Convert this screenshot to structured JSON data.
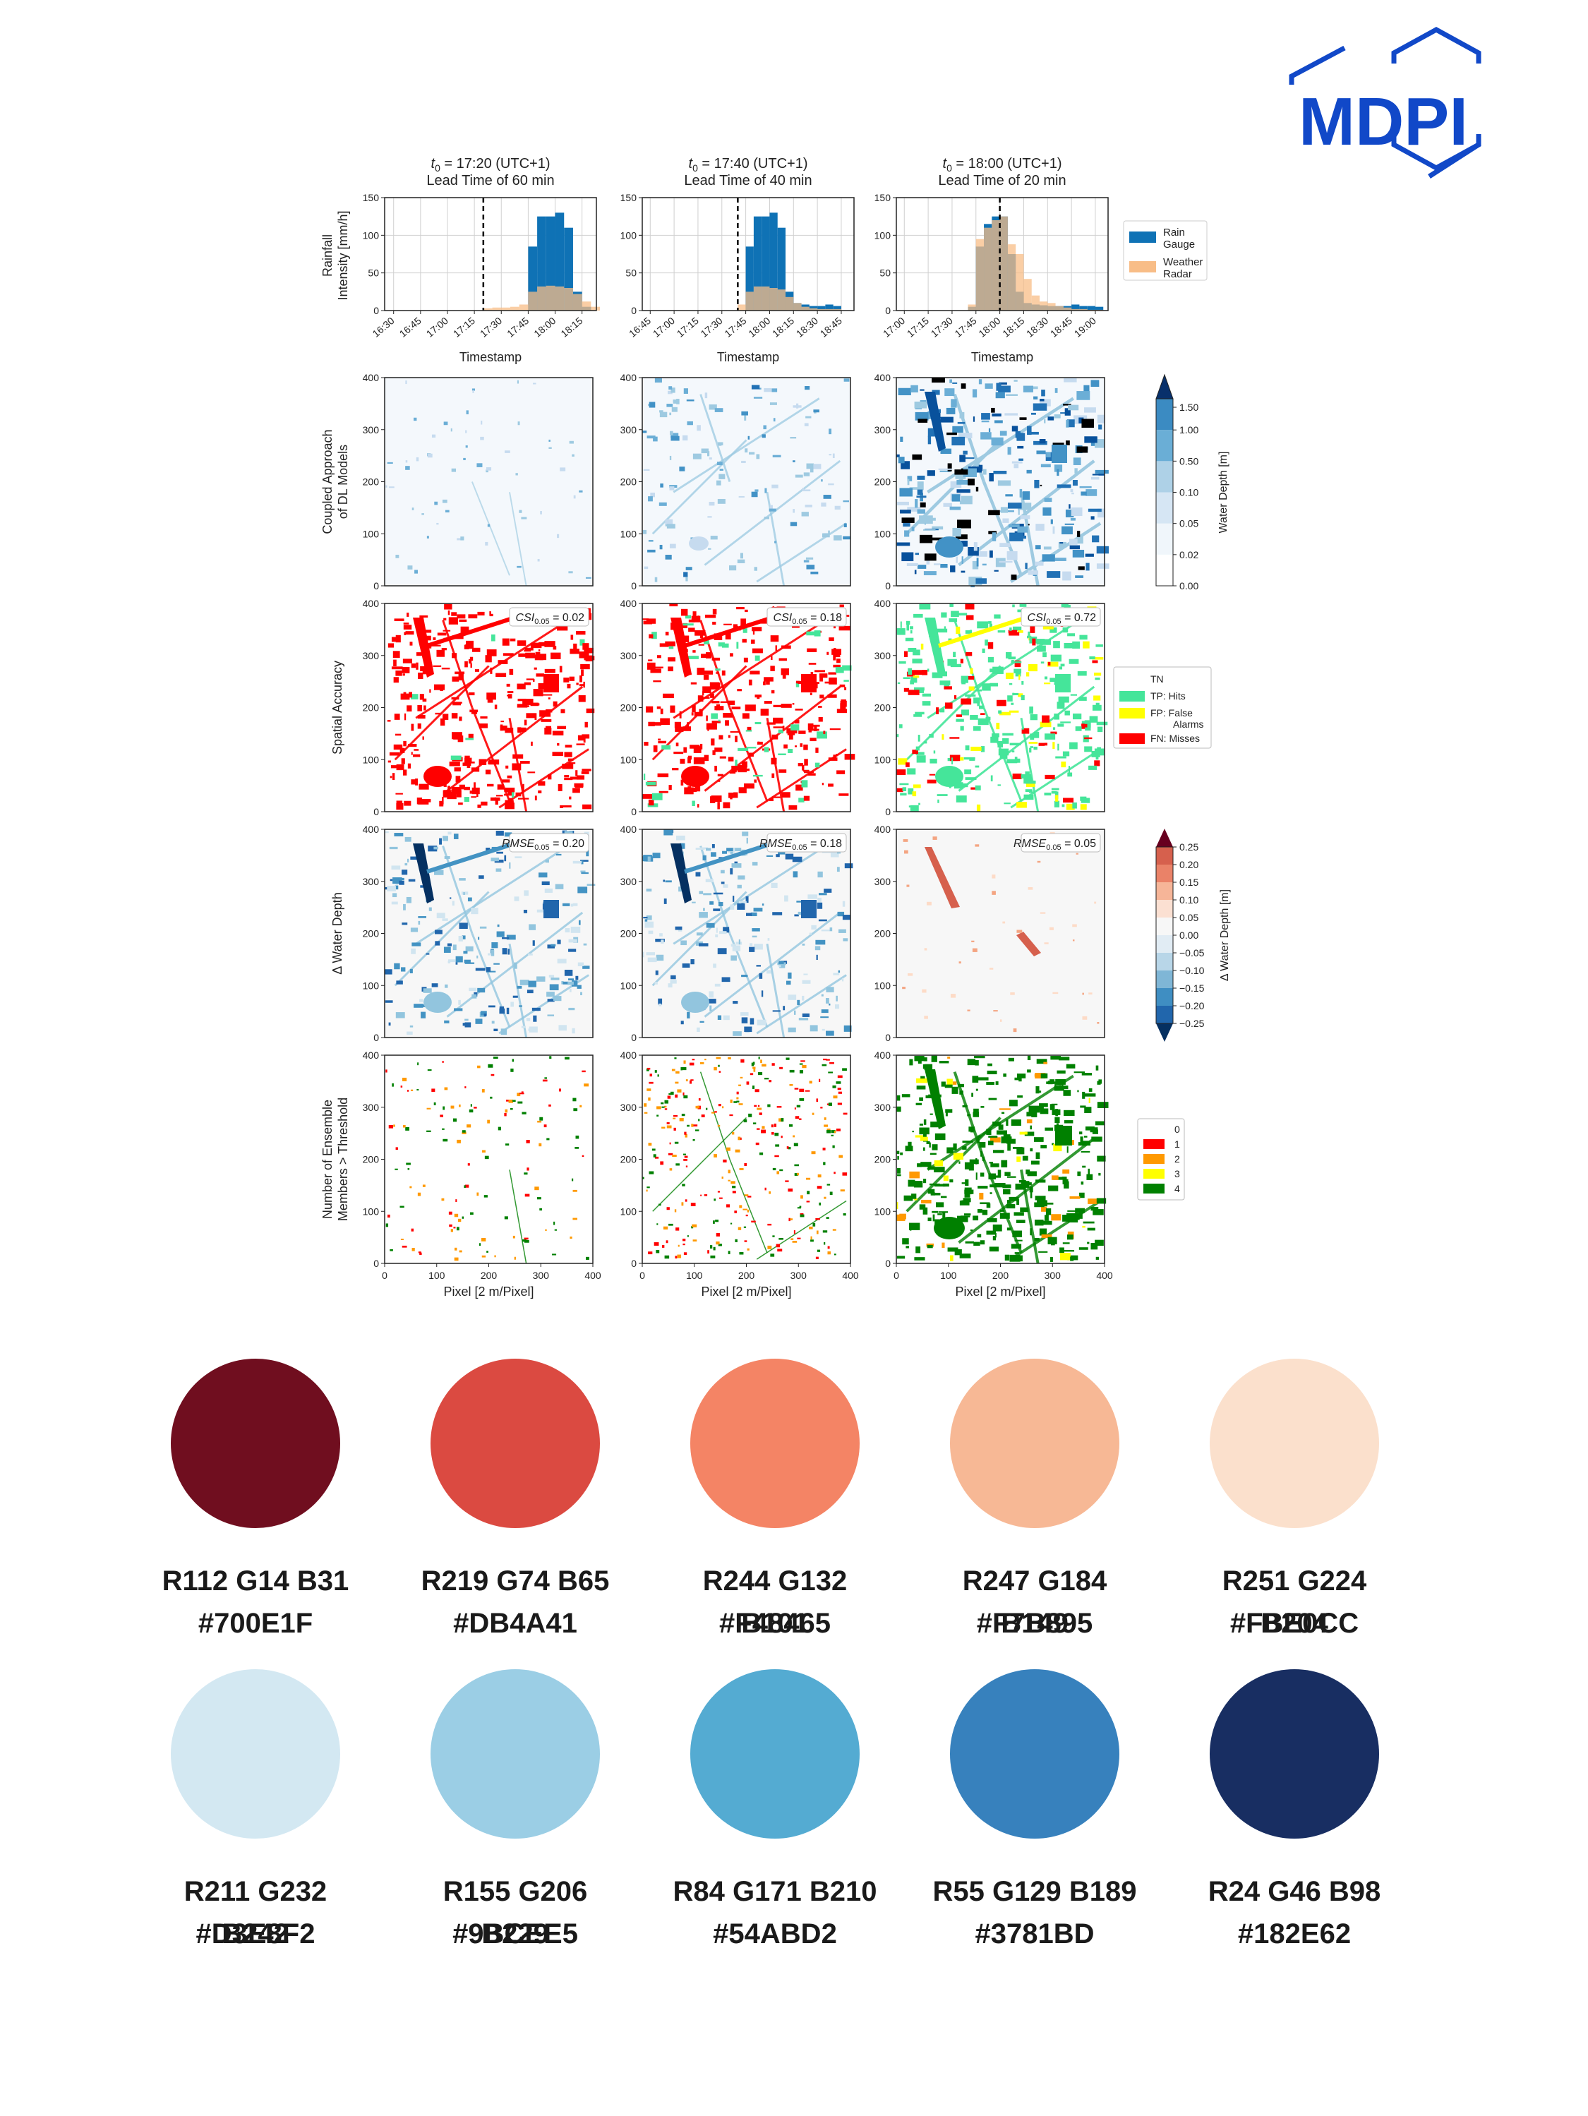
{
  "publisher": {
    "name": "MDPI",
    "color": "#1148c8"
  },
  "columns": [
    {
      "title_var": "t",
      "title_sub": "0",
      "title_rest": " = 17:20 (UTC+1)",
      "subtitle": "Lead Time of 60 min",
      "ticks": [
        "16:30",
        "16:45",
        "17:00",
        "17:15",
        "17:30",
        "17:45",
        "18:00",
        "18:15"
      ]
    },
    {
      "title_var": "t",
      "title_sub": "0",
      "title_rest": " = 17:40 (UTC+1)",
      "subtitle": "Lead Time of 40 min",
      "ticks": [
        "16:45",
        "17:00",
        "17:15",
        "17:30",
        "17:45",
        "18:00",
        "18:15",
        "18:30",
        "18:45"
      ]
    },
    {
      "title_var": "t",
      "title_sub": "0",
      "title_rest": " = 18:00 (UTC+1)",
      "subtitle": "Lead Time of 20 min",
      "ticks": [
        "17:00",
        "17:15",
        "17:30",
        "17:45",
        "18:00",
        "18:15",
        "18:30",
        "18:45",
        "19:00"
      ]
    }
  ],
  "chart_data": [
    {
      "type": "bar",
      "title": "t0 = 17:20 (UTC+1) Lead Time of 60 min",
      "xlabel": "Timestamp",
      "ylabel": "Rainfall Intensity [mm/h]",
      "ylim": [
        0,
        150
      ],
      "grid": true,
      "t0": "17:20",
      "categories": [
        "17:20",
        "17:25",
        "17:30",
        "17:35",
        "17:40",
        "17:45",
        "17:50",
        "17:55",
        "18:00",
        "18:05",
        "18:10",
        "18:15",
        "18:20"
      ],
      "series": [
        {
          "name": "Rain Gauge",
          "values": [
            0,
            0,
            0,
            0,
            0,
            85,
            125,
            125,
            130,
            110,
            25,
            5,
            0
          ]
        },
        {
          "name": "Weather Radar",
          "values": [
            3,
            4,
            4,
            5,
            8,
            25,
            32,
            33,
            32,
            30,
            22,
            12,
            5
          ]
        }
      ]
    },
    {
      "type": "bar",
      "title": "t0 = 17:40 (UTC+1) Lead Time of 40 min",
      "xlabel": "Timestamp",
      "ylabel": "Rainfall Intensity [mm/h]",
      "ylim": [
        0,
        150
      ],
      "grid": true,
      "t0": "17:40",
      "categories": [
        "17:40",
        "17:45",
        "17:50",
        "17:55",
        "18:00",
        "18:05",
        "18:10",
        "18:15",
        "18:20",
        "18:25",
        "18:30",
        "18:35",
        "18:40",
        "18:45"
      ],
      "series": [
        {
          "name": "Rain Gauge",
          "values": [
            0,
            85,
            125,
            125,
            130,
            110,
            25,
            10,
            8,
            6,
            6,
            8,
            6,
            0
          ]
        },
        {
          "name": "Weather Radar",
          "values": [
            8,
            25,
            32,
            32,
            30,
            28,
            18,
            10,
            5,
            3,
            2,
            2,
            2,
            0
          ]
        }
      ]
    },
    {
      "type": "bar",
      "title": "t0 = 18:00 (UTC+1) Lead Time of 20 min",
      "xlabel": "Timestamp",
      "ylabel": "Rainfall Intensity [mm/h]",
      "ylim": [
        0,
        150
      ],
      "grid": true,
      "t0": "18:00",
      "categories": [
        "17:40",
        "17:45",
        "17:50",
        "17:55",
        "18:00",
        "18:05",
        "18:10",
        "18:15",
        "18:20",
        "18:25",
        "18:30",
        "18:35",
        "18:40",
        "18:45",
        "18:50",
        "18:55",
        "19:00"
      ],
      "series": [
        {
          "name": "Rain Gauge",
          "values": [
            5,
            85,
            115,
            125,
            125,
            75,
            25,
            10,
            8,
            7,
            6,
            6,
            6,
            8,
            6,
            6,
            5
          ]
        },
        {
          "name": "Weather Radar",
          "values": [
            8,
            95,
            110,
            120,
            125,
            88,
            75,
            42,
            20,
            12,
            10,
            6,
            4,
            2,
            2,
            1,
            1
          ]
        }
      ]
    }
  ],
  "bar_panel": {
    "xlabel": "Timestamp",
    "ylabel_lines": [
      "Rainfall",
      "Intensity [mm/h]"
    ],
    "yticks": [
      "0",
      "50",
      "100",
      "150"
    ],
    "legend": [
      {
        "label_lines": [
          "Rain",
          "Gauge"
        ],
        "color": "#0f72b5"
      },
      {
        "label_lines": [
          "Weather",
          "Radar"
        ],
        "color": "#f8bd87"
      }
    ]
  },
  "map_axes": {
    "ticks": [
      "0",
      "100",
      "200",
      "300",
      "400"
    ],
    "xlabel": "Pixel [2 m/Pixel]"
  },
  "rows": [
    {
      "ylabel_lines": [
        "Coupled Approach",
        "of DL Models"
      ]
    },
    {
      "ylabel_lines": [
        "Spatial Accuracy"
      ],
      "metric_var": "CSI",
      "metric_sub": "0.05",
      "values": [
        "0.02",
        "0.18",
        "0.72"
      ]
    },
    {
      "ylabel_lines": [
        "Δ Water Depth"
      ],
      "metric_var": "RMSE",
      "metric_sub": "0.05",
      "values": [
        "0.20",
        "0.18",
        "0.05"
      ]
    },
    {
      "ylabel_lines": [
        "Number of Ensemble",
        "Members > Threshold"
      ]
    }
  ],
  "colorbar_depth": {
    "label": "Water Depth [m]",
    "ticks": [
      "1.50",
      "1.00",
      "0.50",
      "0.10",
      "0.05",
      "0.02",
      "0.00"
    ]
  },
  "colorbar_delta": {
    "label": "Δ Water Depth [m]",
    "ticks": [
      "0.25",
      "0.20",
      "0.15",
      "0.10",
      "0.05",
      "0.00",
      "−0.05",
      "−0.10",
      "−0.15",
      "−0.20",
      "−0.25"
    ]
  },
  "legend_accuracy": [
    {
      "lines": [
        "TN"
      ],
      "color": "#ffffff"
    },
    {
      "lines": [
        "TP: Hits"
      ],
      "color": "#45e59a"
    },
    {
      "lines": [
        "FP: False",
        "Alarms"
      ],
      "color": "#ffff00"
    },
    {
      "lines": [
        "FN: Misses"
      ],
      "color": "#ff0000"
    }
  ],
  "legend_ensemble": [
    {
      "label": "0",
      "color": "#ffffff"
    },
    {
      "label": "1",
      "color": "#ff0000"
    },
    {
      "label": "2",
      "color": "#ff9900"
    },
    {
      "label": "3",
      "color": "#ffff00"
    },
    {
      "label": "4",
      "color": "#008000"
    }
  ],
  "swatches": [
    {
      "rgb": "R112 G14 B31",
      "hex": "#700E1F",
      "color": "#700E1F"
    },
    {
      "rgb": "R219 G74 B65",
      "hex": "#DB4A41",
      "color": "#DB4A41"
    },
    {
      "rgb": "R244 G132 B101",
      "hex": "#F48465",
      "color": "#F48465"
    },
    {
      "rgb": "R247 G184 B149",
      "hex": "#F7B895",
      "color": "#F7B895"
    },
    {
      "rgb": "R251 G224 B204",
      "hex": "#FBE0CC",
      "color": "#FBE0CC"
    },
    {
      "rgb": "R211 G232 B242",
      "hex": "#D3E8F2",
      "color": "#D3E8F2"
    },
    {
      "rgb": "R155 G206 B229",
      "hex": "#9BCEE5",
      "color": "#9BCEE5"
    },
    {
      "rgb": "R84 G171 B210",
      "hex": "#54ABD2",
      "color": "#54ABD2"
    },
    {
      "rgb": "R55 G129 B189",
      "hex": "#3781BD",
      "color": "#3781BD"
    },
    {
      "rgb": "R24 G46 B98",
      "hex": "#182E62",
      "color": "#182E62"
    }
  ]
}
